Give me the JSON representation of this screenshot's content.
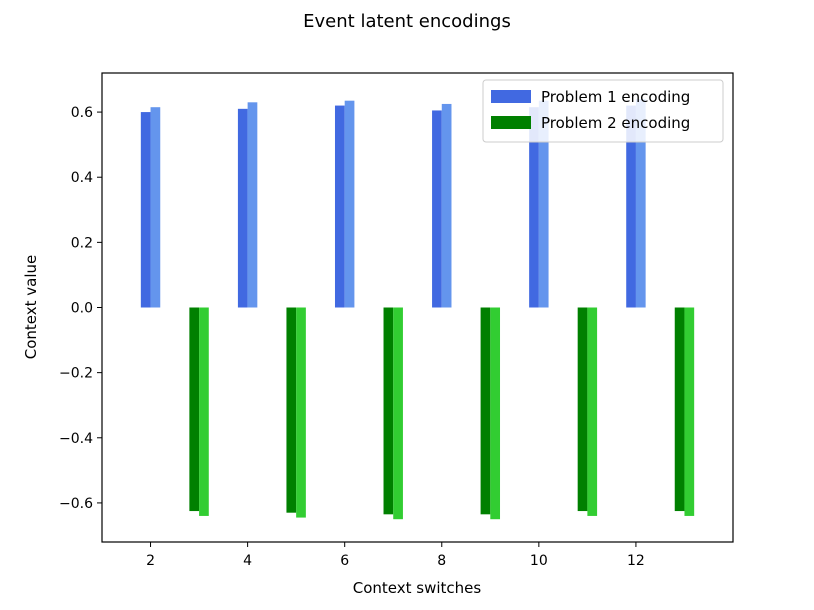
{
  "chart_data": {
    "type": "bar",
    "title": "Event latent encodings",
    "xlabel": "Context switches",
    "ylabel": "Context value",
    "xlim": [
      1,
      14
    ],
    "ylim": [
      -0.72,
      0.72
    ],
    "xticks": [
      2,
      4,
      6,
      8,
      10,
      12
    ],
    "xtick_labels": [
      "2",
      "4",
      "6",
      "8",
      "10",
      "12"
    ],
    "yticks": [
      -0.6,
      -0.4,
      -0.2,
      0.0,
      0.2,
      0.4,
      0.6
    ],
    "ytick_labels": [
      "−0.6",
      "−0.4",
      "−0.2",
      "0.0",
      "0.2",
      "0.4",
      "0.6"
    ],
    "bar_width": 0.2,
    "grid": false,
    "legend_position": "upper right",
    "series": [
      {
        "name": "Problem 1 encoding",
        "legend": true,
        "color": "#4169e1",
        "points": [
          [
            1.9,
            0.6
          ],
          [
            3.9,
            0.61
          ],
          [
            5.9,
            0.62
          ],
          [
            7.9,
            0.605
          ],
          [
            9.9,
            0.615
          ],
          [
            11.9,
            0.62
          ]
        ]
      },
      {
        "name": "",
        "legend": false,
        "color": "#6495ed",
        "points": [
          [
            2.1,
            0.615
          ],
          [
            4.1,
            0.63
          ],
          [
            6.1,
            0.635
          ],
          [
            8.1,
            0.625
          ],
          [
            10.1,
            0.635
          ],
          [
            12.1,
            0.64
          ]
        ]
      },
      {
        "name": "Problem 2 encoding",
        "legend": true,
        "color": "#008000",
        "points": [
          [
            2.9,
            -0.625
          ],
          [
            4.9,
            -0.63
          ],
          [
            6.9,
            -0.635
          ],
          [
            8.9,
            -0.635
          ],
          [
            10.9,
            -0.625
          ],
          [
            12.9,
            -0.625
          ]
        ]
      },
      {
        "name": "",
        "legend": false,
        "color": "#32cd32",
        "points": [
          [
            3.1,
            -0.64
          ],
          [
            5.1,
            -0.645
          ],
          [
            7.1,
            -0.65
          ],
          [
            9.1,
            -0.65
          ],
          [
            11.1,
            -0.64
          ],
          [
            13.1,
            -0.64
          ]
        ]
      }
    ]
  }
}
